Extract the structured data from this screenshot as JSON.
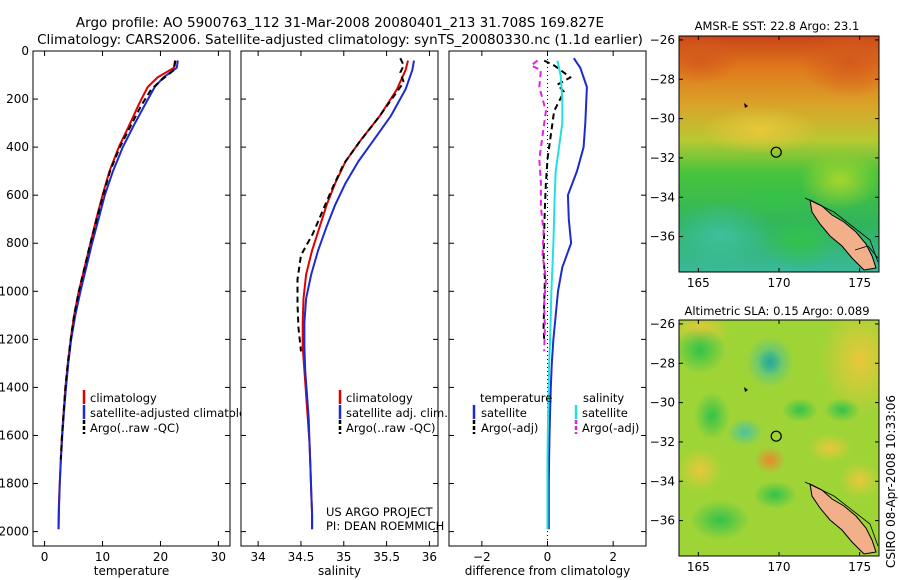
{
  "header": {
    "line1": "Argo profile: AO 5900763_112 31-Mar-2008 20080401_213 31.708S 169.827E",
    "line2": "Climatology: CARS2006. Satellite-adjusted climatology: synTS_20080330.nc (1.1d earlier)"
  },
  "side_label": "CSIRO 08-Apr-2008 10:33:06",
  "credit": {
    "line1": "US ARGO PROJECT",
    "line2": "PI: DEAN ROEMMICH"
  },
  "colors": {
    "red": "#e00000",
    "blue": "#1c2bd0",
    "black": "#000000",
    "cyan": "#22e0e0",
    "magenta": "#e020e0"
  },
  "chart_data": [
    {
      "type": "line",
      "title": "",
      "xlabel": "temperature",
      "ylabel": "",
      "xlim": [
        -2,
        32
      ],
      "ylim": [
        2060,
        0
      ],
      "xticks": [
        0,
        10,
        20,
        30
      ],
      "yticks": [
        0,
        200,
        400,
        600,
        800,
        1000,
        1200,
        1400,
        1600,
        1800,
        2000
      ],
      "yreverse": true,
      "series": [
        {
          "name": "climatology",
          "color": "#e00000",
          "dash": "",
          "points": [
            [
              22.5,
              40
            ],
            [
              22.3,
              70
            ],
            [
              19.5,
              110
            ],
            [
              17.8,
              150
            ],
            [
              16.3,
              220
            ],
            [
              14.8,
              300
            ],
            [
              12.8,
              400
            ],
            [
              11.2,
              500
            ],
            [
              10.0,
              600
            ],
            [
              8.9,
              700
            ],
            [
              7.9,
              800
            ],
            [
              6.9,
              900
            ],
            [
              5.9,
              1000
            ],
            [
              5.1,
              1100
            ],
            [
              4.5,
              1200
            ],
            [
              4.0,
              1300
            ],
            [
              3.6,
              1400
            ],
            [
              3.3,
              1500
            ],
            [
              3.0,
              1600
            ],
            [
              2.8,
              1700
            ],
            [
              2.6,
              1800
            ],
            [
              2.45,
              1900
            ],
            [
              2.4,
              1990
            ]
          ]
        },
        {
          "name": "satellite-adjusted climatology",
          "color": "#1c2bd0",
          "dash": "",
          "points": [
            [
              23.0,
              40
            ],
            [
              22.8,
              70
            ],
            [
              20.5,
              110
            ],
            [
              19.0,
              150
            ],
            [
              17.4,
              220
            ],
            [
              15.6,
              300
            ],
            [
              13.5,
              400
            ],
            [
              11.8,
              500
            ],
            [
              10.4,
              600
            ],
            [
              9.3,
              700
            ],
            [
              8.2,
              800
            ],
            [
              7.2,
              900
            ],
            [
              6.2,
              1000
            ],
            [
              5.3,
              1100
            ],
            [
              4.6,
              1200
            ],
            [
              4.1,
              1300
            ],
            [
              3.7,
              1400
            ],
            [
              3.35,
              1500
            ],
            [
              3.05,
              1600
            ],
            [
              2.82,
              1700
            ],
            [
              2.62,
              1800
            ],
            [
              2.48,
              1900
            ],
            [
              2.42,
              1990
            ]
          ]
        },
        {
          "name": "Argo(..raw -QC)",
          "color": "#000000",
          "dash": "6 4",
          "points": [
            [
              22.6,
              40
            ],
            [
              22.3,
              80
            ],
            [
              20.2,
              120
            ],
            [
              18.4,
              160
            ],
            [
              16.6,
              230
            ],
            [
              14.9,
              310
            ],
            [
              13.0,
              400
            ],
            [
              11.3,
              500
            ],
            [
              10.1,
              600
            ],
            [
              9.0,
              700
            ],
            [
              7.9,
              800
            ],
            [
              6.9,
              900
            ],
            [
              5.9,
              1000
            ],
            [
              5.1,
              1100
            ],
            [
              4.5,
              1200
            ],
            [
              4.0,
              1300
            ],
            [
              3.6,
              1400
            ],
            [
              3.3,
              1500
            ],
            [
              3.0,
              1600
            ],
            [
              2.8,
              1700
            ]
          ]
        }
      ],
      "legend": {
        "position": "bottom-right",
        "entries": [
          "climatology",
          "satellite-adjusted climatology",
          "Argo(..raw -QC)"
        ]
      }
    },
    {
      "type": "line",
      "title": "",
      "xlabel": "salinity",
      "ylabel": "",
      "xlim": [
        33.8,
        36.1
      ],
      "ylim": [
        2060,
        0
      ],
      "xticks": [
        34,
        34.5,
        35,
        35.5,
        36
      ],
      "xticklabels": [
        "34",
        "34.5",
        "35",
        "35.5",
        "36"
      ],
      "yreverse": true,
      "series": [
        {
          "name": "climatology",
          "color": "#e00000",
          "dash": "",
          "points": [
            [
              35.75,
              40
            ],
            [
              35.72,
              80
            ],
            [
              35.62,
              160
            ],
            [
              35.42,
              270
            ],
            [
              35.2,
              370
            ],
            [
              35.02,
              460
            ],
            [
              34.9,
              550
            ],
            [
              34.8,
              640
            ],
            [
              34.72,
              730
            ],
            [
              34.63,
              830
            ],
            [
              34.56,
              930
            ],
            [
              34.53,
              1030
            ],
            [
              34.52,
              1130
            ],
            [
              34.52,
              1230
            ],
            [
              34.54,
              1330
            ],
            [
              34.56,
              1430
            ],
            [
              34.58,
              1530
            ],
            [
              34.6,
              1630
            ],
            [
              34.61,
              1730
            ],
            [
              34.62,
              1830
            ],
            [
              34.63,
              1930
            ],
            [
              34.63,
              1990
            ]
          ]
        },
        {
          "name": "satellite adj. clim.",
          "color": "#1c2bd0",
          "dash": "",
          "points": [
            [
              35.82,
              40
            ],
            [
              35.8,
              80
            ],
            [
              35.72,
              160
            ],
            [
              35.55,
              270
            ],
            [
              35.35,
              370
            ],
            [
              35.17,
              460
            ],
            [
              35.02,
              550
            ],
            [
              34.9,
              640
            ],
            [
              34.8,
              730
            ],
            [
              34.7,
              830
            ],
            [
              34.62,
              930
            ],
            [
              34.56,
              1030
            ],
            [
              34.54,
              1130
            ],
            [
              34.54,
              1230
            ],
            [
              34.55,
              1330
            ],
            [
              34.57,
              1430
            ],
            [
              34.59,
              1530
            ],
            [
              34.6,
              1630
            ],
            [
              34.61,
              1730
            ],
            [
              34.62,
              1830
            ],
            [
              34.63,
              1930
            ],
            [
              34.63,
              1990
            ]
          ]
        },
        {
          "name": "Argo(..raw -QC)",
          "color": "#000000",
          "dash": "6 4",
          "points": [
            [
              35.66,
              30
            ],
            [
              35.7,
              60
            ],
            [
              35.66,
              90
            ],
            [
              35.7,
              130
            ],
            [
              35.58,
              190
            ],
            [
              35.4,
              280
            ],
            [
              35.18,
              380
            ],
            [
              35.0,
              470
            ],
            [
              34.88,
              560
            ],
            [
              34.76,
              660
            ],
            [
              34.64,
              760
            ],
            [
              34.5,
              850
            ],
            [
              34.46,
              950
            ],
            [
              34.46,
              1050
            ],
            [
              34.47,
              1150
            ],
            [
              34.5,
              1250
            ]
          ]
        }
      ],
      "legend": {
        "position": "bottom-right",
        "entries": [
          "climatology",
          "satellite adj. clim.",
          "Argo(..raw -QC)"
        ]
      }
    },
    {
      "type": "line",
      "title": "",
      "xlabel": "difference from climatology",
      "ylabel": "",
      "xlim": [
        -3.0,
        3.0
      ],
      "ylim": [
        2060,
        0
      ],
      "xticks": [
        -2,
        0,
        2
      ],
      "yreverse": true,
      "series": [
        {
          "name": "temperature satellite",
          "color": "#1c2bd0",
          "dash": "",
          "points": [
            [
              0.8,
              30
            ],
            [
              1.0,
              70
            ],
            [
              1.2,
              150
            ],
            [
              1.15,
              300
            ],
            [
              1.1,
              400
            ],
            [
              0.9,
              500
            ],
            [
              0.62,
              600
            ],
            [
              0.65,
              700
            ],
            [
              0.72,
              800
            ],
            [
              0.45,
              900
            ],
            [
              0.32,
              1000
            ],
            [
              0.25,
              1100
            ],
            [
              0.18,
              1200
            ],
            [
              0.13,
              1300
            ],
            [
              0.1,
              1400
            ],
            [
              0.08,
              1500
            ],
            [
              0.06,
              1600
            ],
            [
              0.05,
              1700
            ],
            [
              0.04,
              1800
            ],
            [
              0.04,
              1900
            ],
            [
              0.04,
              1990
            ]
          ]
        },
        {
          "name": "temperature Argo(-adj)",
          "color": "#000000",
          "dash": "6 4",
          "points": [
            [
              -0.1,
              40
            ],
            [
              0.2,
              60
            ],
            [
              0.5,
              90
            ],
            [
              0.7,
              110
            ],
            [
              0.3,
              140
            ],
            [
              0.5,
              170
            ],
            [
              0.2,
              250
            ],
            [
              0.1,
              350
            ],
            [
              0.0,
              450
            ],
            [
              -0.05,
              550
            ],
            [
              -0.08,
              650
            ],
            [
              -0.1,
              750
            ],
            [
              -0.12,
              850
            ],
            [
              -0.08,
              950
            ],
            [
              -0.1,
              1050
            ],
            [
              -0.12,
              1150
            ],
            [
              -0.1,
              1200
            ]
          ]
        },
        {
          "name": "salinity satellite",
          "color": "#22e0e0",
          "dash": "",
          "points": [
            [
              0.3,
              40
            ],
            [
              0.4,
              100
            ],
            [
              0.45,
              200
            ],
            [
              0.45,
              300
            ],
            [
              0.35,
              400
            ],
            [
              0.25,
              500
            ],
            [
              0.22,
              600
            ],
            [
              0.2,
              700
            ],
            [
              0.18,
              800
            ],
            [
              0.15,
              900
            ],
            [
              0.12,
              1000
            ],
            [
              0.1,
              1100
            ],
            [
              0.08,
              1200
            ],
            [
              0.05,
              1300
            ],
            [
              0.04,
              1400
            ],
            [
              0.02,
              1500
            ],
            [
              0.01,
              1600
            ],
            [
              0.0,
              1700
            ],
            [
              0.0,
              1800
            ],
            [
              0.0,
              1900
            ],
            [
              0.0,
              1990
            ]
          ]
        },
        {
          "name": "salinity Argo(-adj)",
          "color": "#e020e0",
          "dash": "6 4",
          "points": [
            [
              -0.3,
              40
            ],
            [
              -0.5,
              60
            ],
            [
              -0.2,
              80
            ],
            [
              -0.25,
              150
            ],
            [
              -0.05,
              250
            ],
            [
              -0.15,
              350
            ],
            [
              -0.25,
              450
            ],
            [
              -0.2,
              550
            ],
            [
              -0.2,
              650
            ],
            [
              -0.12,
              750
            ],
            [
              -0.15,
              850
            ],
            [
              -0.05,
              950
            ],
            [
              -0.1,
              1050
            ],
            [
              -0.08,
              1150
            ],
            [
              -0.1,
              1250
            ]
          ]
        }
      ],
      "legend": {
        "position": "bottom",
        "headers": [
          "temperature",
          "salinity"
        ],
        "entries": [
          "satellite",
          "Argo(-adj)",
          "satellite",
          "Argo(-adj)"
        ]
      }
    },
    {
      "type": "heatmap",
      "title": "AMSR-E SST: 22.8 Argo: 23.1",
      "xlabel": "",
      "ylabel": "",
      "xlim": [
        163.8,
        176.2
      ],
      "ylim": [
        -37.8,
        -25.8
      ],
      "xticks": [
        165,
        170,
        175
      ],
      "yticks": [
        -26,
        -28,
        -30,
        -32,
        -34,
        -36
      ],
      "marker": {
        "lon": 169.827,
        "lat": -31.708
      },
      "colorscale": "jet"
    },
    {
      "type": "heatmap",
      "title": "Altimetric SLA: 0.15 Argo: 0.089",
      "xlabel": "",
      "ylabel": "",
      "xlim": [
        163.8,
        176.2
      ],
      "ylim": [
        -37.8,
        -25.8
      ],
      "xticks": [
        165,
        170,
        175
      ],
      "yticks": [
        -26,
        -28,
        -30,
        -32,
        -34,
        -36
      ],
      "marker": {
        "lon": 169.827,
        "lat": -31.708
      },
      "colorscale": "jet"
    }
  ]
}
